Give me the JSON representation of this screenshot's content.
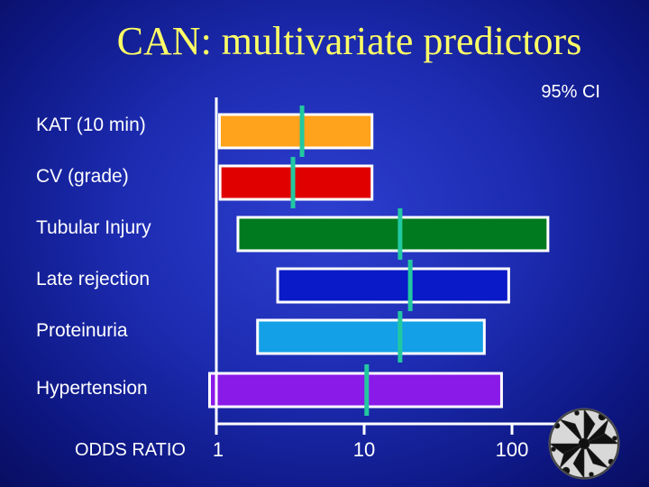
{
  "slide": {
    "title": "CAN: multivariate predictors"
  },
  "chart_data": {
    "type": "forest",
    "title": "CAN: multivariate predictors",
    "ci_label": "95% CI",
    "xlabel": "ODDS RATIO",
    "xscale": "log",
    "xlim": [
      1,
      200
    ],
    "xticks": [
      1,
      10,
      100
    ],
    "xtick_labels": [
      "1",
      "10",
      "100"
    ],
    "rows": [
      {
        "label": "KAT (10 min)",
        "low": 1.05,
        "high": 11.3,
        "estimate": 3.8,
        "color": "#ffa21c"
      },
      {
        "label": "CV (grade)",
        "low": 1.06,
        "high": 11.3,
        "estimate": 3.3,
        "color": "#e00000"
      },
      {
        "label": "Tubular Injury",
        "low": 1.4,
        "high": 175,
        "estimate": 17.5,
        "color": "#007a1e"
      },
      {
        "label": "Late rejection",
        "low": 2.6,
        "high": 95,
        "estimate": 20.5,
        "color": "#0a1ac8"
      },
      {
        "label": "Proteinuria",
        "low": 1.9,
        "high": 65,
        "estimate": 17.5,
        "color": "#14a0e6"
      },
      {
        "label": "Hypertension",
        "low": 0.9,
        "high": 85,
        "estimate": 10.4,
        "color": "#8a1ae8"
      }
    ],
    "estimate_color": "#22c8a0",
    "axis_color": "#ffffff"
  }
}
